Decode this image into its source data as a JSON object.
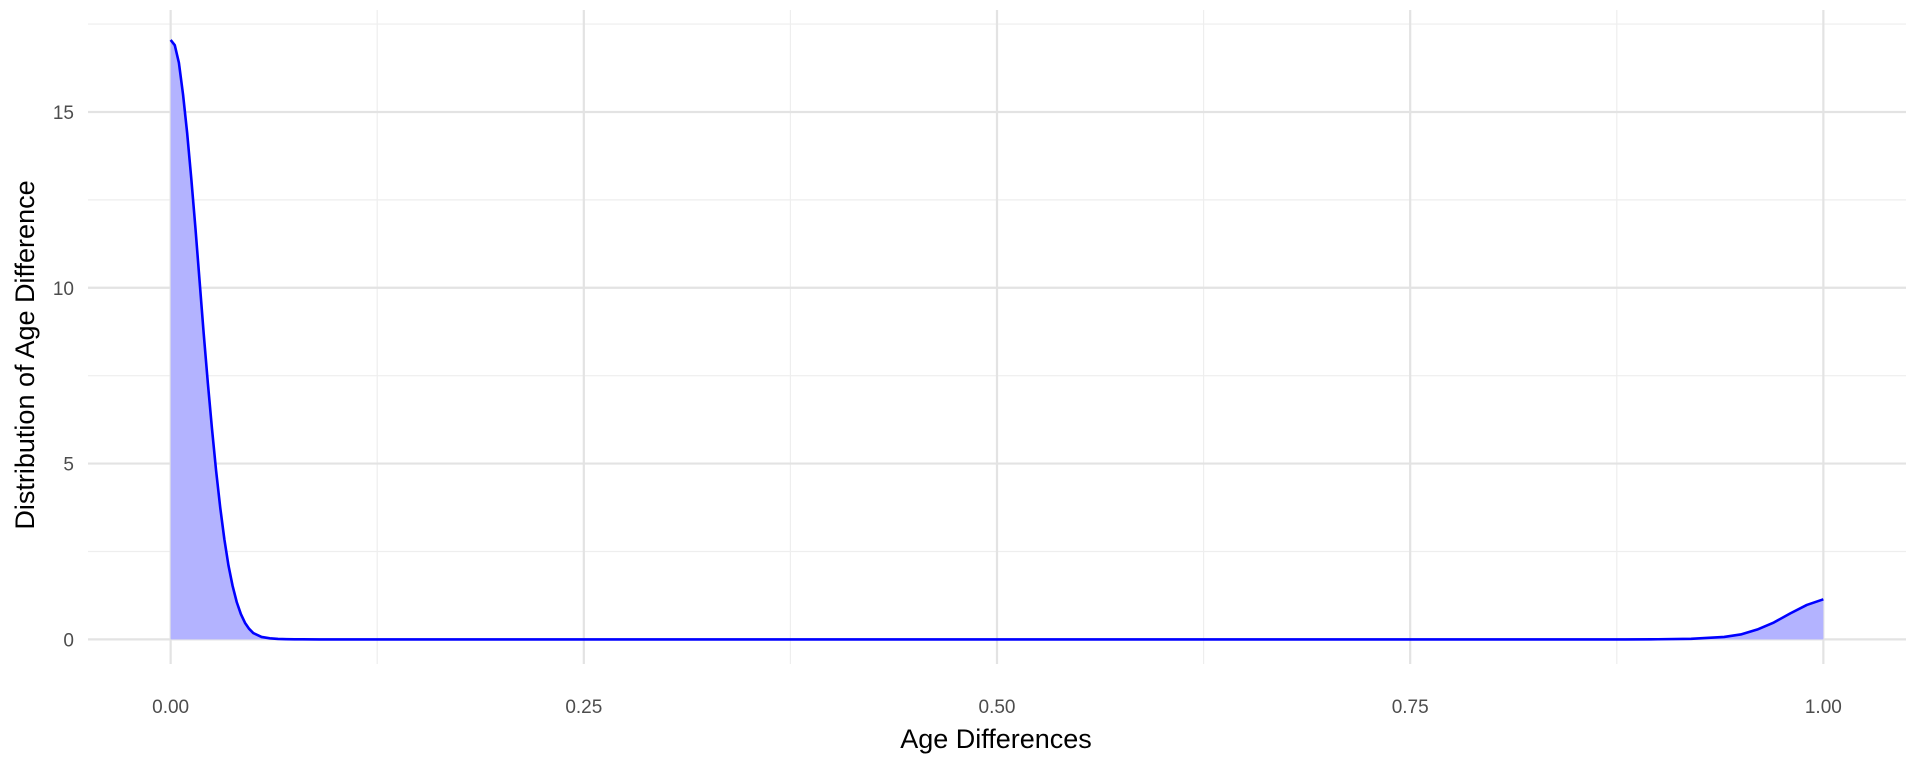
{
  "chart_data": {
    "type": "area",
    "title": "",
    "xlabel": "Age Differences",
    "ylabel": "Distribution of Age Difference",
    "xlim": [
      -0.05,
      1.05
    ],
    "ylim": [
      -0.7,
      17.9
    ],
    "x_ticks": [
      0.0,
      0.25,
      0.5,
      0.75,
      1.0
    ],
    "x_tick_labels": [
      "0.00",
      "0.25",
      "0.50",
      "0.75",
      "1.00"
    ],
    "y_ticks": [
      0,
      5,
      10,
      15
    ],
    "y_tick_labels": [
      "0",
      "5",
      "10",
      "15"
    ],
    "grid": true,
    "legend": "none",
    "series": [
      {
        "x": [
          0.0,
          0.0025,
          0.005,
          0.0075,
          0.01,
          0.0125,
          0.015,
          0.0175,
          0.02,
          0.0225,
          0.025,
          0.0275,
          0.03,
          0.0325,
          0.035,
          0.0375,
          0.04,
          0.0425,
          0.045,
          0.0475,
          0.05,
          0.055,
          0.06,
          0.065,
          0.07,
          0.075,
          0.08,
          0.09,
          0.1,
          0.12,
          0.15,
          0.2,
          0.3,
          0.4,
          0.5,
          0.6,
          0.7,
          0.8,
          0.85,
          0.88,
          0.9,
          0.92,
          0.94,
          0.95,
          0.96,
          0.97,
          0.98,
          0.99,
          1.0
        ],
        "y": [
          17.05,
          16.9,
          16.4,
          15.5,
          14.4,
          13.1,
          11.7,
          10.2,
          8.7,
          7.3,
          6.0,
          4.8,
          3.75,
          2.85,
          2.1,
          1.52,
          1.06,
          0.72,
          0.47,
          0.3,
          0.18,
          0.07,
          0.03,
          0.012,
          0.005,
          0.002,
          0.001,
          0.0,
          0.0,
          0.0,
          0.0,
          0.0,
          0.0,
          0.0,
          0.0,
          0.0,
          0.0,
          0.0,
          0.0,
          0.0,
          0.004,
          0.015,
          0.07,
          0.14,
          0.28,
          0.48,
          0.74,
          0.98,
          1.14
        ],
        "line_color": "#0000ff",
        "fill_color": "#b3b3ff"
      }
    ]
  }
}
